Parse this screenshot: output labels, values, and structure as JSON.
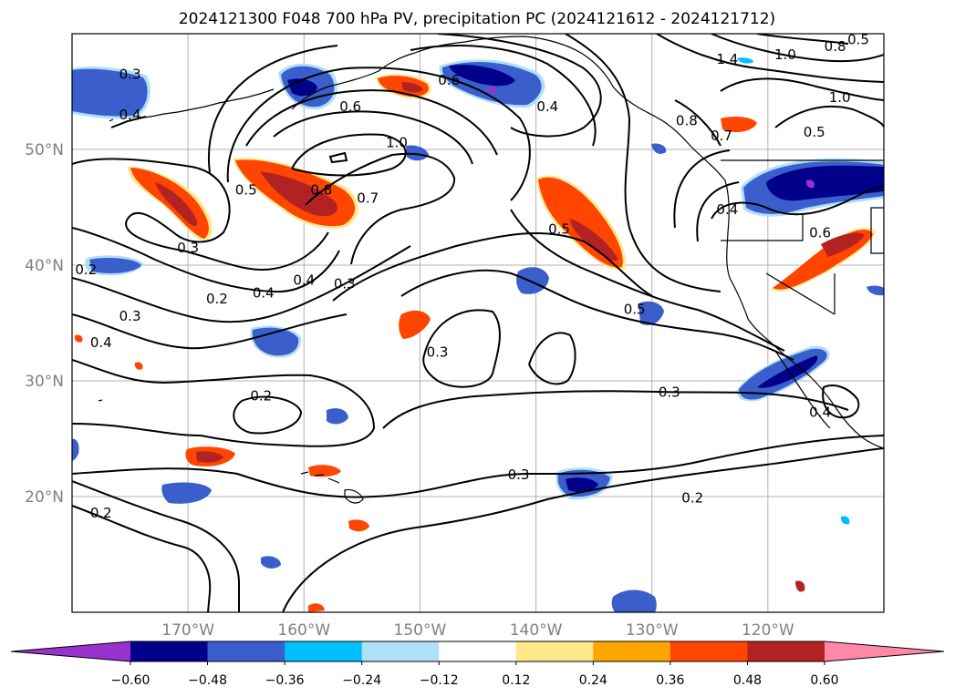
{
  "title": "2024121300 F048 700 hPa PV, precipitation PC (2024121612 - 2024121712)",
  "map": {
    "projection": "PlateCarree",
    "lon_range": [
      -180,
      -110
    ],
    "lat_range": [
      10,
      60
    ],
    "gridlines": true,
    "lat_ticks": [
      "50°N",
      "40°N",
      "30°N",
      "20°N"
    ],
    "lat_tick_values": [
      50,
      40,
      30,
      20
    ],
    "lon_ticks": [
      "170°W",
      "160°W",
      "150°W",
      "140°W",
      "130°W",
      "120°W"
    ],
    "lon_tick_values": [
      -170,
      -160,
      -150,
      -140,
      -130,
      -120
    ]
  },
  "colorbar": {
    "orientation": "horizontal",
    "extend": "both",
    "tick_labels": [
      "−0.60",
      "−0.48",
      "−0.36",
      "−0.24",
      "−0.12",
      "0.12",
      "0.24",
      "0.36",
      "0.48",
      "0.60"
    ],
    "colors": [
      "#9932cc",
      "#00008b",
      "#3a5fcd",
      "#00bfff",
      "#b0e0f8",
      "#ffffff",
      "#ffe88c",
      "#ffa500",
      "#ff4500",
      "#b22222",
      "#ff88a8"
    ]
  },
  "pv_contour_labels": [
    {
      "text": "0.3",
      "lon": -175,
      "lat": 56.5
    },
    {
      "text": "0.4",
      "lon": -175,
      "lat": 53
    },
    {
      "text": "0.6",
      "lon": -156,
      "lat": 53.7
    },
    {
      "text": "1.0",
      "lon": -152,
      "lat": 50.6
    },
    {
      "text": "0.8",
      "lon": -158.5,
      "lat": 46.5
    },
    {
      "text": "0.7",
      "lon": -154.5,
      "lat": 45.8
    },
    {
      "text": "0.5",
      "lon": -165,
      "lat": 46.5
    },
    {
      "text": "0.3",
      "lon": -170,
      "lat": 41.5
    },
    {
      "text": "0.4",
      "lon": -160,
      "lat": 38.7
    },
    {
      "text": "0.3",
      "lon": -156.5,
      "lat": 38.4
    },
    {
      "text": "0.2",
      "lon": -178.8,
      "lat": 39.6
    },
    {
      "text": "0.2",
      "lon": -167.5,
      "lat": 37.1
    },
    {
      "text": "0.4",
      "lon": -163.5,
      "lat": 37.6
    },
    {
      "text": "0.3",
      "lon": -175,
      "lat": 35.6
    },
    {
      "text": "0.4",
      "lon": -177.5,
      "lat": 33.3
    },
    {
      "text": "0.2",
      "lon": -163.7,
      "lat": 28.7
    },
    {
      "text": "0.3",
      "lon": -148.5,
      "lat": 32.5
    },
    {
      "text": "0.6",
      "lon": -147.5,
      "lat": 56
    },
    {
      "text": "0.4",
      "lon": -139,
      "lat": 53.7
    },
    {
      "text": "0.5",
      "lon": -138,
      "lat": 43.1
    },
    {
      "text": "0.5",
      "lon": -131.5,
      "lat": 36.2
    },
    {
      "text": "0.3",
      "lon": -128.5,
      "lat": 29
    },
    {
      "text": "0.3",
      "lon": -141.5,
      "lat": 21.9
    },
    {
      "text": "0.2",
      "lon": -126.5,
      "lat": 19.9
    },
    {
      "text": "0.2",
      "lon": -177.5,
      "lat": 18.6
    },
    {
      "text": "1.4",
      "lon": -123.5,
      "lat": 57.8
    },
    {
      "text": "1.0",
      "lon": -118.5,
      "lat": 58.2
    },
    {
      "text": "0.8",
      "lon": -114.2,
      "lat": 58.9
    },
    {
      "text": "0.5",
      "lon": -112.2,
      "lat": 59.5
    },
    {
      "text": "1.0",
      "lon": -113.8,
      "lat": 54.5
    },
    {
      "text": "0.5",
      "lon": -116,
      "lat": 51.5
    },
    {
      "text": "0.8",
      "lon": -127,
      "lat": 52.5
    },
    {
      "text": "0.7",
      "lon": -124,
      "lat": 51.2
    },
    {
      "text": "0.4",
      "lon": -123.5,
      "lat": 44.8
    },
    {
      "text": "0.6",
      "lon": -115.5,
      "lat": 42.8
    },
    {
      "text": "0.4",
      "lon": -115.5,
      "lat": 27.3
    }
  ]
}
